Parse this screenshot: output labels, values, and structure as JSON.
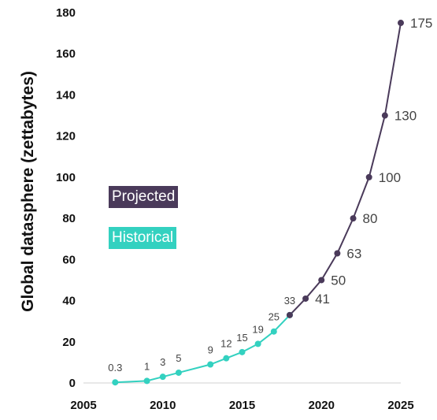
{
  "chart_data": {
    "type": "line",
    "title": "",
    "xlabel": "",
    "ylabel": "Global datasphere (zettabytes)",
    "xlim": [
      2005,
      2025
    ],
    "ylim": [
      0,
      180
    ],
    "x_ticks": [
      2005,
      2010,
      2015,
      2020,
      2025
    ],
    "y_ticks": [
      0,
      20,
      40,
      60,
      80,
      100,
      120,
      140,
      160,
      180
    ],
    "grid": false,
    "legend_placement": "left-center",
    "series": [
      {
        "name": "Historical",
        "color": "#33d1c0",
        "x": [
          2007,
          2009,
          2010,
          2011,
          2013,
          2014,
          2015,
          2016,
          2017,
          2018
        ],
        "values": [
          0.3,
          1,
          3,
          5,
          9,
          12,
          15,
          19,
          25,
          33
        ]
      },
      {
        "name": "Projected",
        "color": "#4a3a5a",
        "x": [
          2018,
          2019,
          2020,
          2021,
          2022,
          2023,
          2024,
          2025
        ],
        "values": [
          33,
          41,
          50,
          63,
          80,
          100,
          130,
          175
        ]
      }
    ],
    "data_labels": [
      {
        "x": 2007,
        "y": 0.3,
        "text": "0.3",
        "pos": "above",
        "size": 13
      },
      {
        "x": 2009,
        "y": 1,
        "text": "1",
        "pos": "above",
        "size": 13
      },
      {
        "x": 2010,
        "y": 3,
        "text": "3",
        "pos": "above",
        "size": 13
      },
      {
        "x": 2011,
        "y": 5,
        "text": "5",
        "pos": "above",
        "size": 13
      },
      {
        "x": 2013,
        "y": 9,
        "text": "9",
        "pos": "above",
        "size": 13
      },
      {
        "x": 2014,
        "y": 12,
        "text": "12",
        "pos": "above",
        "size": 13
      },
      {
        "x": 2015,
        "y": 15,
        "text": "15",
        "pos": "above",
        "size": 13
      },
      {
        "x": 2016,
        "y": 19,
        "text": "19",
        "pos": "above",
        "size": 13
      },
      {
        "x": 2017,
        "y": 25,
        "text": "25",
        "pos": "above",
        "size": 13
      },
      {
        "x": 2018,
        "y": 33,
        "text": "33",
        "pos": "above",
        "size": 13
      },
      {
        "x": 2019,
        "y": 41,
        "text": "41",
        "pos": "right",
        "size": 17
      },
      {
        "x": 2020,
        "y": 50,
        "text": "50",
        "pos": "right",
        "size": 17
      },
      {
        "x": 2021,
        "y": 63,
        "text": "63",
        "pos": "right",
        "size": 17
      },
      {
        "x": 2022,
        "y": 80,
        "text": "80",
        "pos": "right",
        "size": 17
      },
      {
        "x": 2023,
        "y": 100,
        "text": "100",
        "pos": "right",
        "size": 17
      },
      {
        "x": 2024,
        "y": 130,
        "text": "130",
        "pos": "right",
        "size": 17
      },
      {
        "x": 2025,
        "y": 175,
        "text": "175",
        "pos": "right",
        "size": 17
      }
    ]
  },
  "legend": {
    "projected": {
      "label": "Projected",
      "color": "#4a3a5a"
    },
    "historical": {
      "label": "Historical",
      "color": "#33d1c0"
    }
  }
}
